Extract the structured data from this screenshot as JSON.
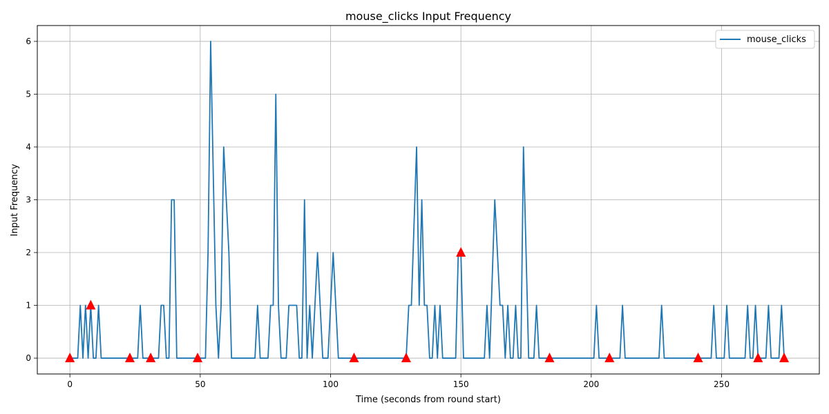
{
  "chart_data": {
    "type": "line",
    "title": "mouse_clicks Input Frequency",
    "xlabel": "Time (seconds from round start)",
    "ylabel": "Input Frequency",
    "xlim": [
      -12.5,
      287.5
    ],
    "ylim": [
      -0.3,
      6.3
    ],
    "xticks": [
      0,
      50,
      100,
      150,
      200,
      250
    ],
    "yticks": [
      0,
      1,
      2,
      3,
      4,
      5,
      6
    ],
    "grid": true,
    "legend": {
      "position": "top-right"
    },
    "series": [
      {
        "name": "mouse_clicks",
        "color": "#1f77b4",
        "points": [
          [
            0,
            0
          ],
          [
            3,
            0
          ],
          [
            4,
            1
          ],
          [
            5,
            0
          ],
          [
            6,
            1
          ],
          [
            7,
            0
          ],
          [
            8,
            1
          ],
          [
            9,
            0
          ],
          [
            10,
            0
          ],
          [
            11,
            1
          ],
          [
            12,
            0
          ],
          [
            26,
            0
          ],
          [
            27,
            1
          ],
          [
            28,
            0
          ],
          [
            34,
            0
          ],
          [
            35,
            1
          ],
          [
            36,
            1
          ],
          [
            37,
            0
          ],
          [
            38,
            0
          ],
          [
            39,
            3
          ],
          [
            40,
            3
          ],
          [
            41,
            0
          ],
          [
            52,
            0
          ],
          [
            53,
            2
          ],
          [
            54,
            6
          ],
          [
            56,
            1
          ],
          [
            57,
            0
          ],
          [
            58,
            1
          ],
          [
            59,
            4
          ],
          [
            61,
            2
          ],
          [
            62,
            0
          ],
          [
            71,
            0
          ],
          [
            72,
            1
          ],
          [
            73,
            0
          ],
          [
            76,
            0
          ],
          [
            77,
            1
          ],
          [
            78,
            1
          ],
          [
            79,
            5
          ],
          [
            80,
            1
          ],
          [
            81,
            0
          ],
          [
            83,
            0
          ],
          [
            84,
            1
          ],
          [
            86,
            1
          ],
          [
            87,
            1
          ],
          [
            88,
            0
          ],
          [
            89,
            0
          ],
          [
            90,
            3
          ],
          [
            91,
            0
          ],
          [
            92,
            1
          ],
          [
            93,
            0
          ],
          [
            95,
            2
          ],
          [
            97,
            0
          ],
          [
            99,
            0
          ],
          [
            101,
            2
          ],
          [
            103,
            0
          ],
          [
            129,
            0
          ],
          [
            130,
            1
          ],
          [
            131,
            1
          ],
          [
            133,
            4
          ],
          [
            134,
            1
          ],
          [
            135,
            3
          ],
          [
            136,
            1
          ],
          [
            137,
            1
          ],
          [
            138,
            0
          ],
          [
            139,
            0
          ],
          [
            140,
            1
          ],
          [
            141,
            0
          ],
          [
            142,
            1
          ],
          [
            143,
            0
          ],
          [
            148,
            0
          ],
          [
            149,
            2
          ],
          [
            150,
            2
          ],
          [
            151,
            0
          ],
          [
            159,
            0
          ],
          [
            160,
            1
          ],
          [
            161,
            0
          ],
          [
            163,
            3
          ],
          [
            165,
            1
          ],
          [
            166,
            1
          ],
          [
            167,
            0
          ],
          [
            168,
            1
          ],
          [
            169,
            0
          ],
          [
            170,
            0
          ],
          [
            171,
            1
          ],
          [
            172,
            0
          ],
          [
            173,
            0
          ],
          [
            174,
            4
          ],
          [
            176,
            0
          ],
          [
            178,
            0
          ],
          [
            179,
            1
          ],
          [
            180,
            0
          ],
          [
            201,
            0
          ],
          [
            202,
            1
          ],
          [
            203,
            0
          ],
          [
            211,
            0
          ],
          [
            212,
            1
          ],
          [
            213,
            0
          ],
          [
            226,
            0
          ],
          [
            227,
            1
          ],
          [
            228,
            0
          ],
          [
            246,
            0
          ],
          [
            247,
            1
          ],
          [
            248,
            0
          ],
          [
            251,
            0
          ],
          [
            252,
            1
          ],
          [
            253,
            0
          ],
          [
            259,
            0
          ],
          [
            260,
            1
          ],
          [
            261,
            0
          ],
          [
            262,
            0
          ],
          [
            263,
            1
          ],
          [
            264,
            0
          ],
          [
            267,
            0
          ],
          [
            268,
            1
          ],
          [
            269,
            0
          ],
          [
            272,
            0
          ],
          [
            273,
            1
          ],
          [
            274,
            0
          ]
        ]
      }
    ],
    "markers": {
      "shape": "triangle-up",
      "color": "#ff0000",
      "points": [
        [
          0,
          0
        ],
        [
          8,
          1
        ],
        [
          23,
          0
        ],
        [
          31,
          0
        ],
        [
          49,
          0
        ],
        [
          109,
          0
        ],
        [
          129,
          0
        ],
        [
          150,
          2
        ],
        [
          184,
          0
        ],
        [
          207,
          0
        ],
        [
          241,
          0
        ],
        [
          264,
          0
        ],
        [
          274,
          0
        ]
      ]
    }
  }
}
